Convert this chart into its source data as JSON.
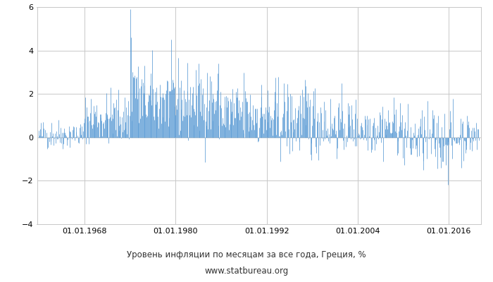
{
  "title": "Уровень инфляции по месяцам за все года, Греция, %",
  "subtitle": "www.statbureau.org",
  "title_color": "#333333",
  "bar_color": "#5b9bd5",
  "background_color": "#ffffff",
  "grid_color": "#c8c8c8",
  "ylim": [
    -4,
    6
  ],
  "yticks": [
    -4,
    -2,
    0,
    2,
    4,
    6
  ],
  "xtick_labels": [
    "01.01.1968",
    "01.01.1980",
    "01.01.1992",
    "01.01.2004",
    "01.01.2016"
  ],
  "xtick_years": [
    1968,
    1980,
    1992,
    2004,
    2016
  ],
  "start_year": 1962,
  "end_year": 2019,
  "seed": 42
}
